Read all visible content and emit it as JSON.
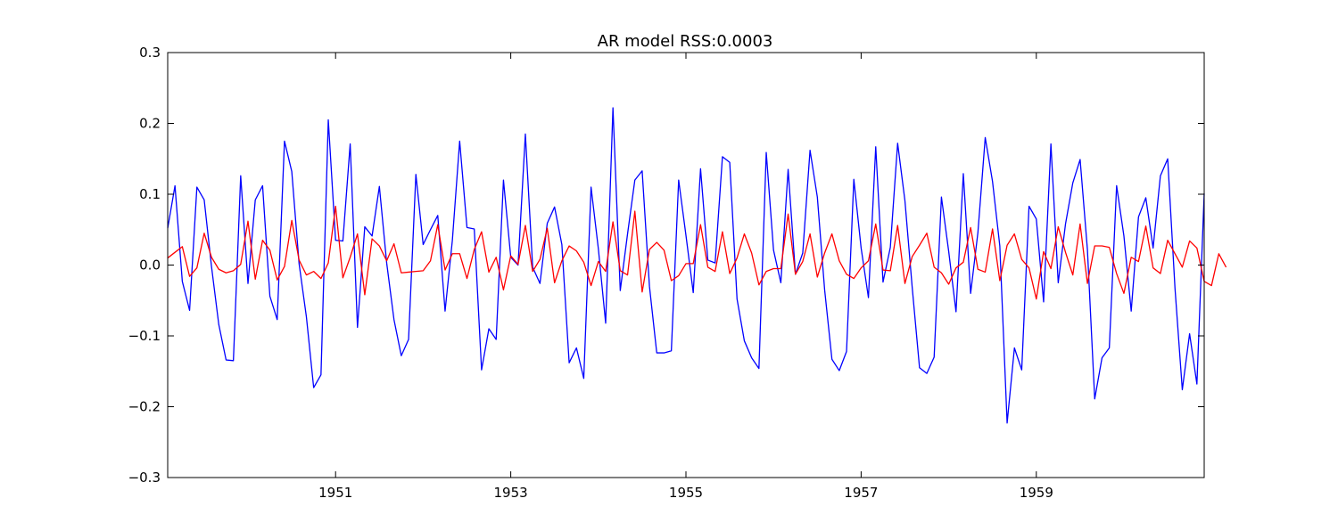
{
  "chart_data": {
    "type": "line",
    "title": "AR model RSS:0.0003",
    "xlabel": "",
    "ylabel": "",
    "xlim": [
      "1949-02",
      "1960-12"
    ],
    "ylim": [
      -0.3,
      0.3
    ],
    "x_ticks": [
      "1951",
      "1953",
      "1955",
      "1957",
      "1959"
    ],
    "y_ticks": [
      "0.3",
      "0.2",
      "0.1",
      "0.0",
      "−0.1",
      "−0.2",
      "−0.3"
    ],
    "grid": false,
    "legend": "none",
    "x_start": "1949-02",
    "x_step": "1 month",
    "series": [
      {
        "color": "#0000ff",
        "values": [
          0.052,
          0.112,
          -0.023,
          -0.064,
          0.11,
          0.092,
          -0.002,
          -0.084,
          -0.134,
          -0.135,
          0.126,
          -0.026,
          0.092,
          0.112,
          -0.044,
          -0.077,
          0.175,
          0.132,
          0.002,
          -0.073,
          -0.173,
          -0.155,
          0.205,
          0.035,
          0.034,
          0.171,
          -0.088,
          0.054,
          0.041,
          0.111,
          0.003,
          -0.077,
          -0.128,
          -0.105,
          0.128,
          0.029,
          0.05,
          0.07,
          -0.065,
          0.035,
          0.175,
          0.053,
          0.051,
          -0.148,
          -0.09,
          -0.105,
          0.12,
          0.011,
          0.0,
          0.185,
          -0.003,
          -0.026,
          0.059,
          0.082,
          0.029,
          -0.138,
          -0.117,
          -0.16,
          0.11,
          0.023,
          -0.082,
          0.222,
          -0.036,
          0.044,
          0.12,
          0.133,
          -0.03,
          -0.124,
          -0.124,
          -0.121,
          0.12,
          0.042,
          -0.039,
          0.136,
          0.007,
          0.003,
          0.153,
          0.145,
          -0.048,
          -0.107,
          -0.131,
          -0.146,
          0.159,
          0.021,
          -0.025,
          0.135,
          -0.013,
          0.017,
          0.162,
          0.096,
          -0.035,
          -0.133,
          -0.149,
          -0.122,
          0.121,
          0.024,
          -0.046,
          0.167,
          -0.024,
          0.025,
          0.172,
          0.091,
          -0.032,
          -0.145,
          -0.153,
          -0.13,
          0.096,
          0.019,
          -0.066,
          0.129,
          -0.04,
          0.046,
          0.18,
          0.118,
          0.027,
          -0.223,
          -0.117,
          -0.148,
          0.083,
          0.065,
          -0.052,
          0.171,
          -0.025,
          0.058,
          0.116,
          0.149,
          0.022,
          -0.189,
          -0.131,
          -0.117,
          0.112,
          0.041,
          -0.065,
          0.068,
          0.095,
          0.024,
          0.126,
          0.15,
          -0.033,
          -0.176,
          -0.097,
          -0.168,
          0.101
        ]
      },
      {
        "color": "#ff0000",
        "values": [
          0.01,
          0.018,
          0.026,
          -0.016,
          -0.004,
          0.045,
          0.011,
          -0.006,
          -0.011,
          -0.008,
          0.001,
          0.062,
          -0.02,
          0.035,
          0.021,
          -0.021,
          -0.002,
          0.063,
          0.007,
          -0.014,
          -0.009,
          -0.019,
          0.003,
          0.083,
          -0.018,
          0.011,
          0.044,
          -0.042,
          0.037,
          0.027,
          0.006,
          0.03,
          -0.011,
          -0.01,
          -0.009,
          -0.008,
          0.006,
          0.057,
          -0.007,
          0.016,
          0.016,
          -0.019,
          0.022,
          0.047,
          -0.01,
          0.011,
          -0.035,
          0.013,
          0.001,
          0.056,
          -0.009,
          0.008,
          0.052,
          -0.025,
          0.006,
          0.027,
          0.02,
          0.004,
          -0.029,
          0.005,
          -0.009,
          0.061,
          -0.008,
          -0.014,
          0.076,
          -0.038,
          0.022,
          0.032,
          0.021,
          -0.022,
          -0.015,
          0.002,
          0.002,
          0.057,
          -0.003,
          -0.009,
          0.047,
          -0.012,
          0.01,
          0.044,
          0.017,
          -0.028,
          -0.009,
          -0.005,
          -0.005,
          0.072,
          -0.013,
          0.005,
          0.044,
          -0.017,
          0.017,
          0.044,
          0.006,
          -0.013,
          -0.019,
          -0.004,
          0.006,
          0.058,
          -0.007,
          -0.008,
          0.056,
          -0.026,
          0.012,
          0.028,
          0.045,
          -0.003,
          -0.011,
          -0.027,
          -0.004,
          0.004,
          0.053,
          -0.006,
          -0.01,
          0.051,
          -0.022,
          0.028,
          0.044,
          0.008,
          -0.004,
          -0.048,
          0.019,
          -0.005,
          0.054,
          0.018,
          -0.014,
          0.058,
          -0.026,
          0.027,
          0.027,
          0.025,
          -0.012,
          -0.04,
          0.011,
          0.005,
          0.055,
          -0.004,
          -0.012,
          0.035,
          0.016,
          -0.003,
          0.034,
          0.024,
          -0.023,
          -0.029,
          0.016,
          -0.003
        ]
      }
    ]
  }
}
